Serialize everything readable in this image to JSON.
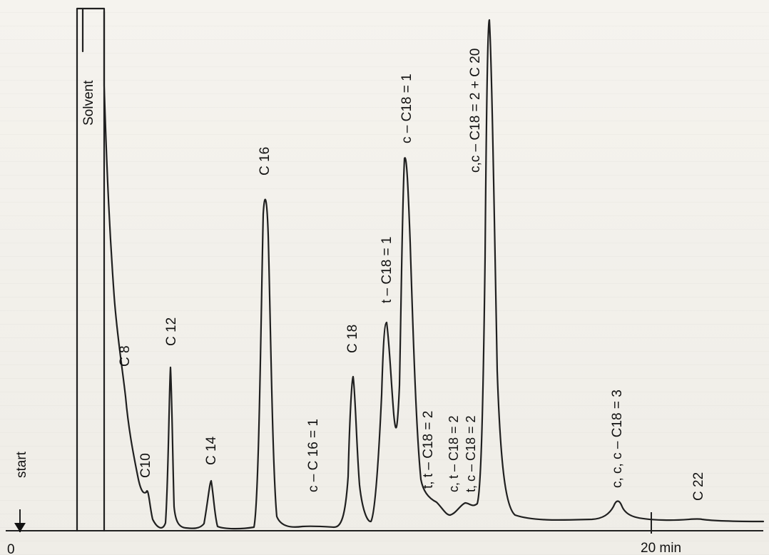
{
  "chart_data": {
    "type": "line",
    "title": "",
    "xlabel": "",
    "ylabel": "",
    "x_unit": "min",
    "xlim": [
      0,
      24
    ],
    "start_label": "start",
    "origin_label": "0",
    "tick_label": "20 min",
    "solvent_label": "Solvent",
    "peaks": [
      {
        "label": "Solvent",
        "rt": 1.3,
        "height": 1.02
      },
      {
        "label": "C 8",
        "rt": 2.3,
        "height": 0.26
      },
      {
        "label": "C10",
        "rt": 3.0,
        "height": 0.06
      },
      {
        "label": "C 12",
        "rt": 3.9,
        "height": 0.32
      },
      {
        "label": "C 14",
        "rt": 5.2,
        "height": 0.09
      },
      {
        "label": "C 16",
        "rt": 7.2,
        "height": 0.65
      },
      {
        "label": "c – C 16 = 1",
        "rt": 9.1,
        "height": 0.01
      },
      {
        "label": "C 18",
        "rt": 10.3,
        "height": 0.28
      },
      {
        "label": "t – C18 = 1",
        "rt": 11.8,
        "height": 0.4
      },
      {
        "label": "c – C18 = 1",
        "rt": 12.5,
        "height": 0.72
      },
      {
        "label": "t, t – C18 = 2",
        "rt": 13.2,
        "height": 0.06
      },
      {
        "label": "c, t – C18 = 2",
        "rt": 14.6,
        "height": 0.05
      },
      {
        "label": "t, c – C18 = 2",
        "rt": 14.6,
        "height": 0.05
      },
      {
        "label": "c,c – C18 = 2 + C 20",
        "rt": 15.8,
        "height": 1.0
      },
      {
        "label": "c, c, c – C18 = 3",
        "rt": 19.3,
        "height": 0.05
      },
      {
        "label": "C 22",
        "rt": 22.4,
        "height": 0.015
      }
    ]
  }
}
